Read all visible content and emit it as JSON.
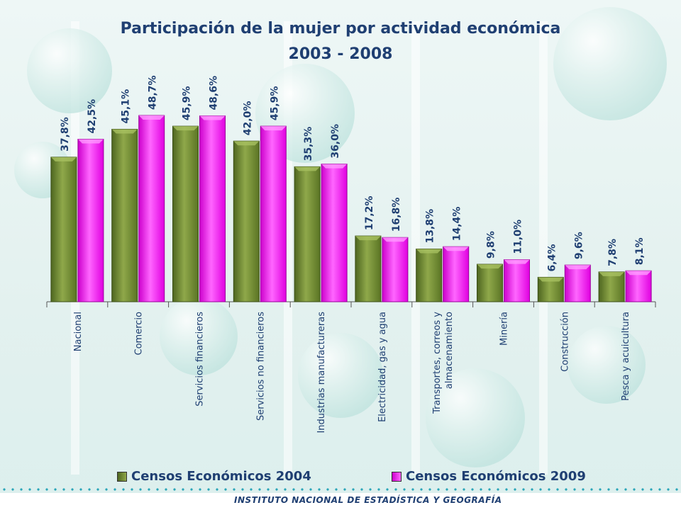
{
  "chart_data": {
    "type": "bar",
    "title": "Participación  de la mujer por actividad económica",
    "subtitle": "2003 - 2008",
    "categories": [
      "Nacional",
      "Comercio",
      "Servicios financieros",
      "Servicios no financieros",
      "Industrias manufactureras",
      "Electricidad, gas y agua",
      [
        "Transportes, correos y",
        "almacenamiento"
      ],
      "Minería",
      "Construcción",
      "Pesca y acuicultura"
    ],
    "series": [
      {
        "name": "Censos Económicos 2004",
        "values": [
          37.8,
          45.1,
          45.9,
          42.0,
          35.3,
          17.2,
          13.8,
          9.8,
          6.4,
          7.8
        ],
        "labels": [
          "37,8%",
          "45,1%",
          "45,9%",
          "42,0%",
          "35,3%",
          "17,2%",
          "13,8%",
          "9,8%",
          "6,4%",
          "7,8%"
        ],
        "color": "#6f8a2e"
      },
      {
        "name": "Censos Económicos 2009",
        "values": [
          42.5,
          48.7,
          48.6,
          45.9,
          36.0,
          16.8,
          14.4,
          11.0,
          9.6,
          8.1
        ],
        "labels": [
          "42,5%",
          "48,7%",
          "48,6%",
          "45,9%",
          "36,0%",
          "16,8%",
          "14,4%",
          "11,0%",
          "9,6%",
          "8,1%"
        ],
        "color": "#ff00ff"
      }
    ],
    "ylim": [
      0,
      52
    ],
    "grid": false,
    "legend": "bottom"
  },
  "footer": {
    "institution": "INSTITUTO NACIONAL  DE ESTADÍSTICA Y GEOGRAFÍA"
  },
  "colors": {
    "title": "#1f3f72",
    "label": "#1f3f72",
    "axis": "#555555"
  }
}
